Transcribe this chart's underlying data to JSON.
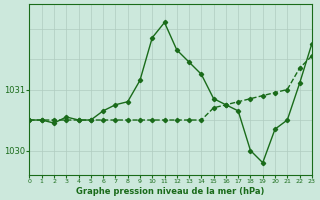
{
  "title": "Graphe pression niveau de la mer (hPa)",
  "xlabel_hours": [
    0,
    1,
    2,
    3,
    4,
    5,
    6,
    7,
    8,
    9,
    10,
    11,
    12,
    13,
    14,
    15,
    16,
    17,
    18,
    19,
    20,
    21,
    22,
    23
  ],
  "line1_y": [
    1030.5,
    1030.5,
    1030.45,
    1030.55,
    1030.5,
    1030.5,
    1030.65,
    1030.75,
    1030.8,
    1031.15,
    1031.85,
    1032.1,
    1031.65,
    1031.45,
    1031.25,
    1030.85,
    1030.75,
    1030.65,
    1030.0,
    1029.8,
    1030.35,
    1030.5,
    1031.1,
    1031.75
  ],
  "line2_y": [
    1030.5,
    1030.5,
    1030.5,
    1030.5,
    1030.5,
    1030.5,
    1030.5,
    1030.5,
    1030.5,
    1030.5,
    1030.5,
    1030.5,
    1030.5,
    1030.5,
    1030.5,
    1030.7,
    1030.75,
    1030.8,
    1030.85,
    1030.9,
    1030.95,
    1031.0,
    1031.35,
    1031.55
  ],
  "line_color": "#1a6b1a",
  "bg_color": "#cce8dc",
  "grid_color_v": "#b0ccc0",
  "grid_color_h": "#b0ccc0",
  "ytick_labels": [
    "1031",
    "1030"
  ],
  "ytick_vals": [
    1031.0,
    1030.0
  ],
  "ylim": [
    1029.6,
    1032.4
  ],
  "xlim": [
    0,
    23
  ],
  "marker": "D",
  "markersize": 2.2,
  "linewidth": 1.0
}
